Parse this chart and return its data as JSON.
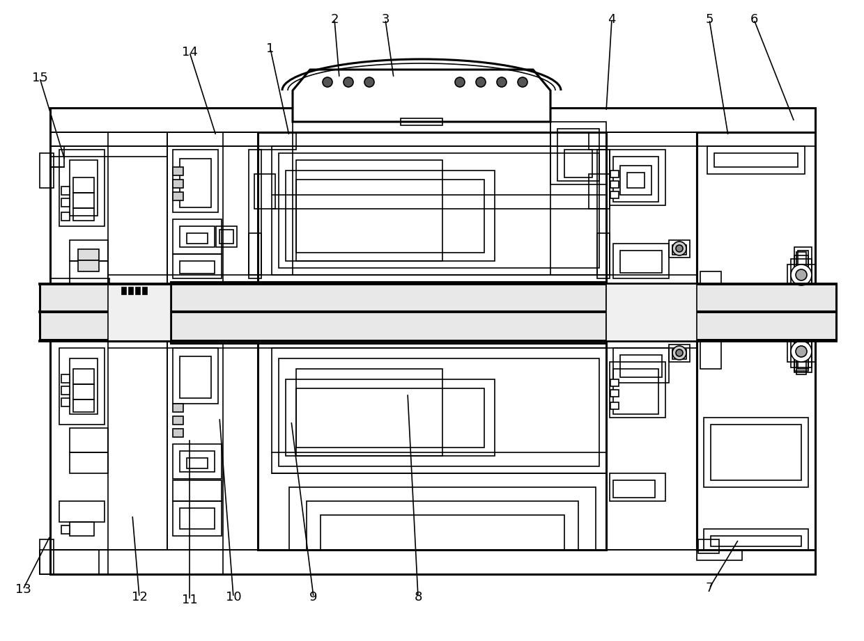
{
  "background_color": "#ffffff",
  "line_color": "#000000",
  "lw": 1.2,
  "tlw": 2.2,
  "label_fontsize": 13,
  "figsize": [
    12.4,
    9.21
  ],
  "dpi": 100,
  "annotations": [
    [
      "1",
      388,
      70,
      415,
      195
    ],
    [
      "2",
      480,
      28,
      487,
      112
    ],
    [
      "3",
      553,
      28,
      565,
      112
    ],
    [
      "4",
      878,
      28,
      870,
      160
    ],
    [
      "5",
      1018,
      28,
      1045,
      195
    ],
    [
      "6",
      1082,
      28,
      1140,
      175
    ],
    [
      "7",
      1018,
      845,
      1060,
      775
    ],
    [
      "8",
      600,
      858,
      585,
      565
    ],
    [
      "9",
      450,
      858,
      418,
      605
    ],
    [
      "10",
      335,
      858,
      315,
      600
    ],
    [
      "11",
      272,
      862,
      272,
      630
    ],
    [
      "12",
      200,
      858,
      190,
      740
    ],
    [
      "13",
      33,
      847,
      72,
      770
    ],
    [
      "14",
      272,
      75,
      310,
      195
    ],
    [
      "15",
      57,
      112,
      93,
      230
    ]
  ]
}
